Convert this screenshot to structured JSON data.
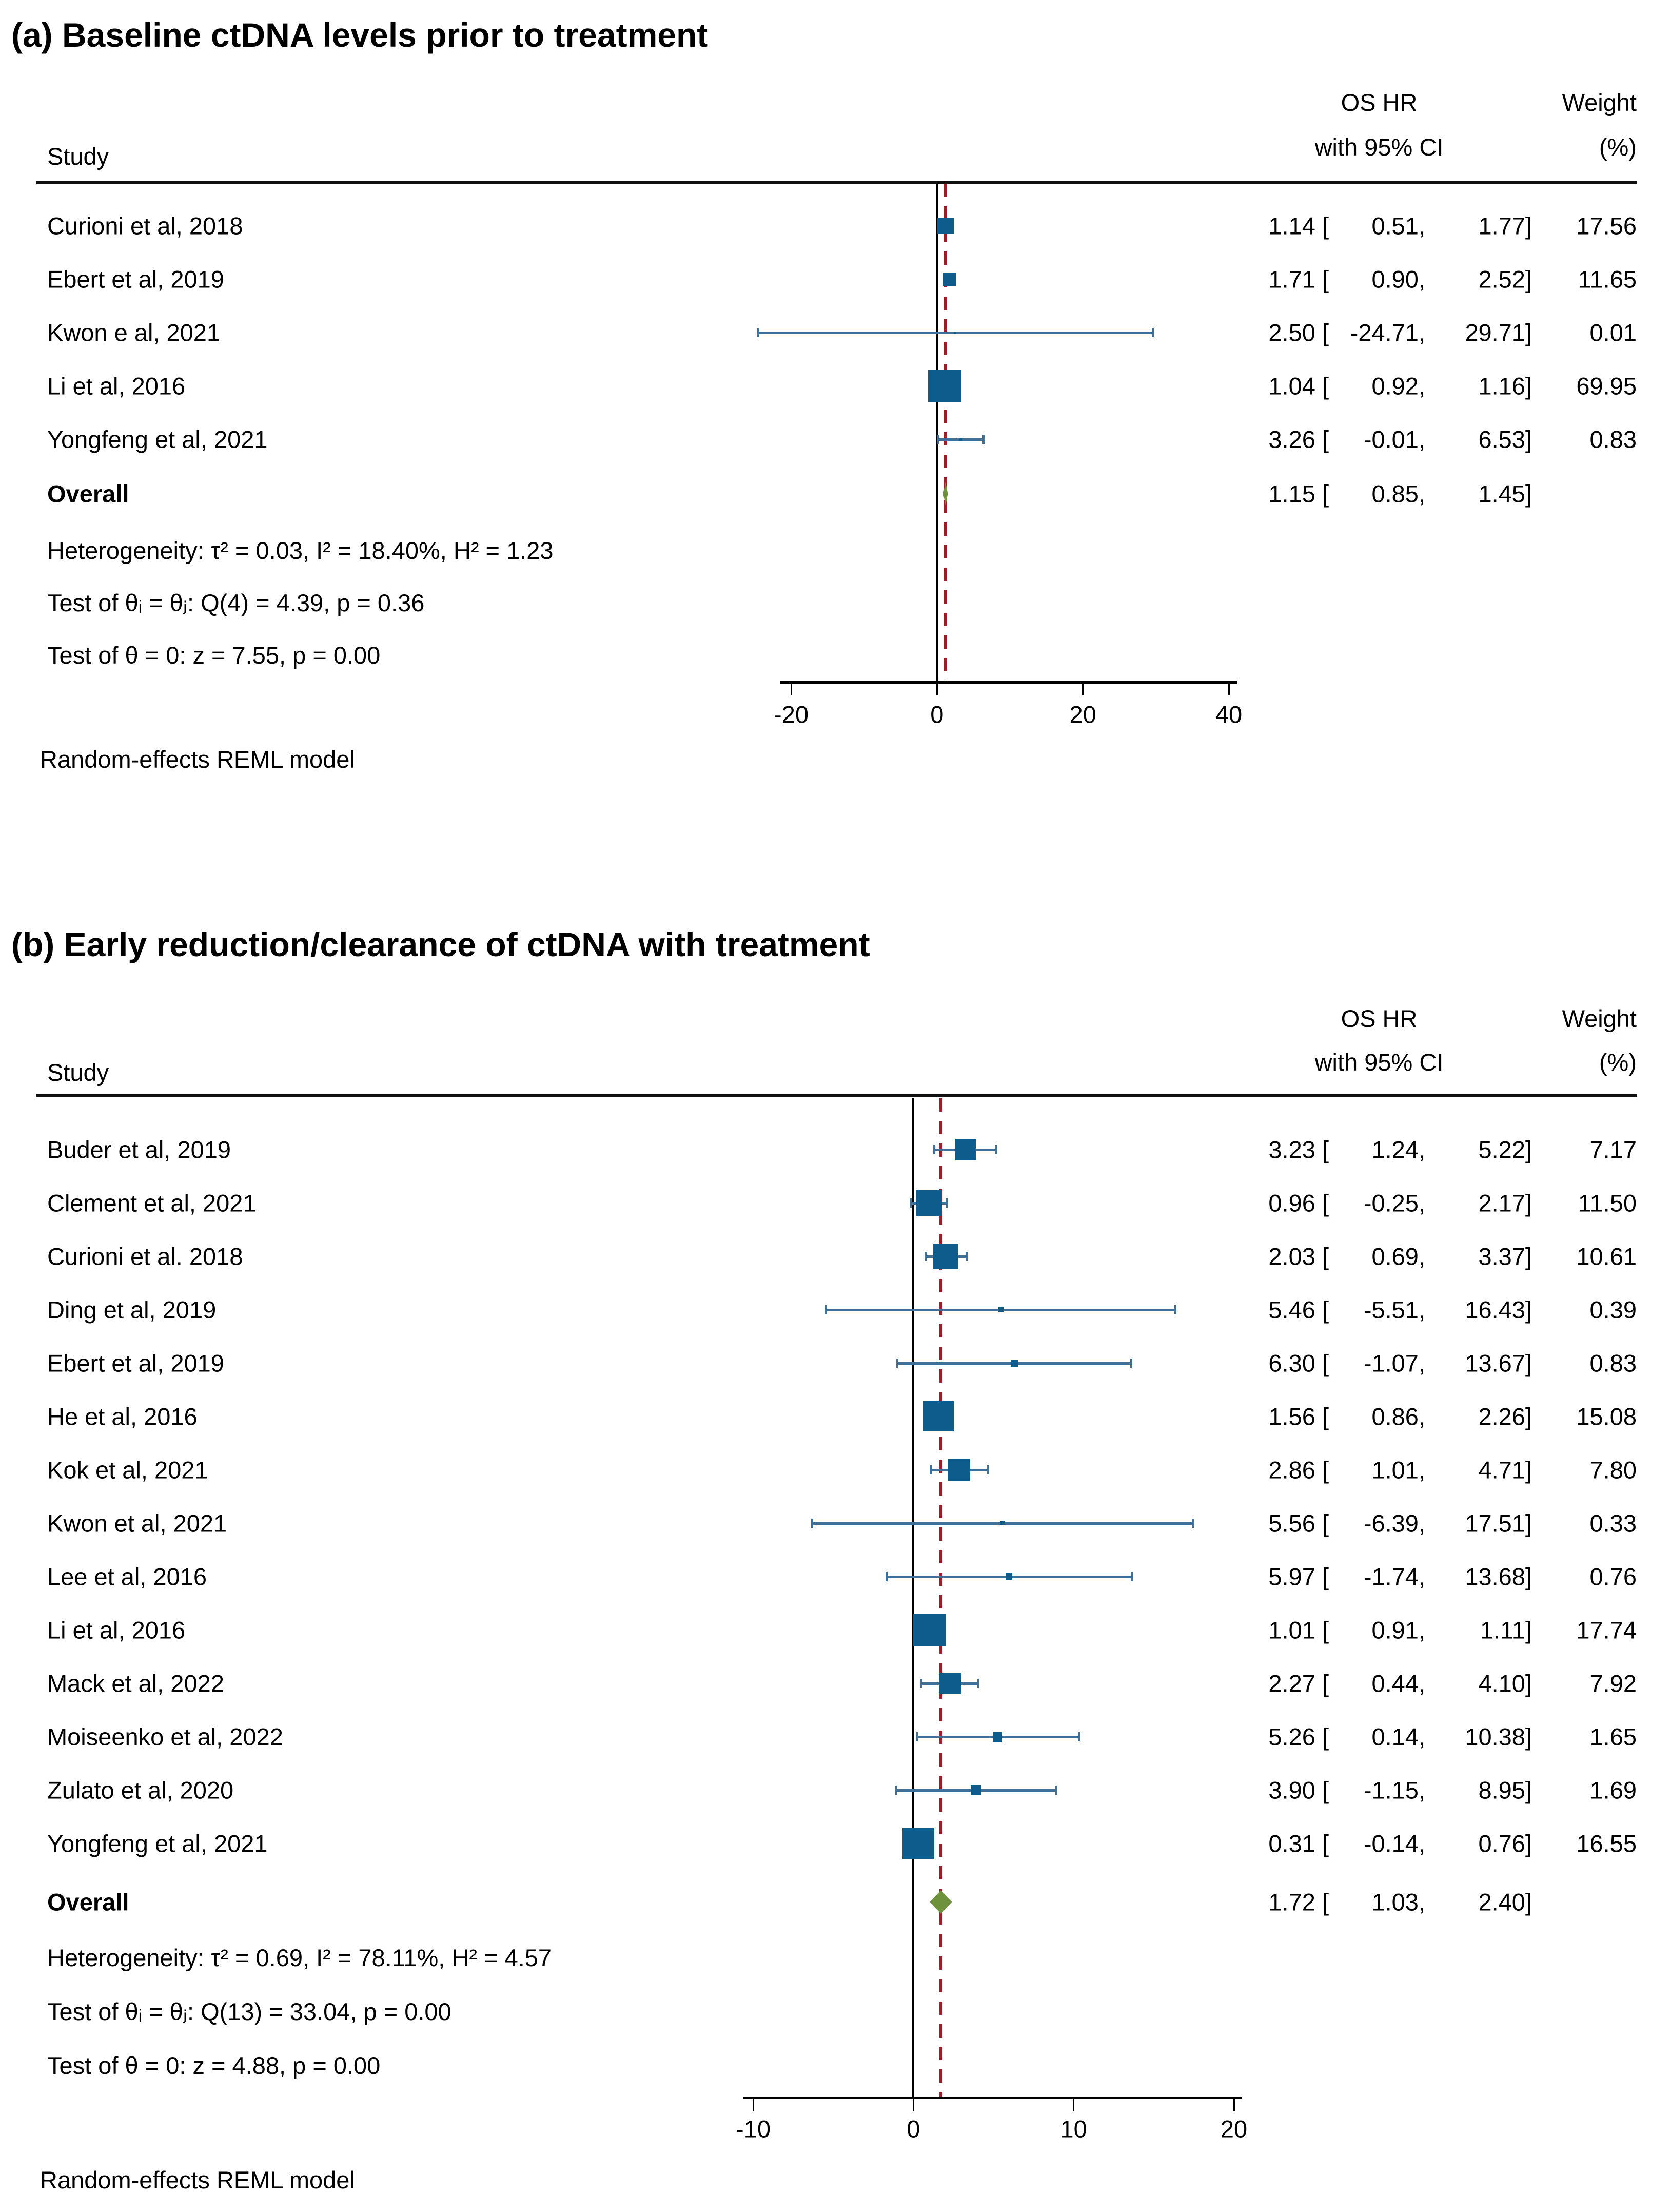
{
  "colors": {
    "marker": "#0d5c8c",
    "ci_line": "#3f7099",
    "diamond": "#6e913c",
    "ref_line_red": "#9b1e28",
    "zero_line": "#000000",
    "axis": "#000000"
  },
  "chart_data": [
    {
      "type": "scatter",
      "variant": "forest-plot",
      "panel_label": "(a)",
      "title": "(a) Baseline ctDNA levels prior to treatment",
      "columns": {
        "study": "Study",
        "effect_line1": "OS HR",
        "effect_line2": "with 95% CI",
        "weight_line1": "Weight",
        "weight_line2": "(%)"
      },
      "studies": [
        {
          "label": "Curioni et al, 2018",
          "est": 1.14,
          "lo": 0.51,
          "hi": 1.77,
          "weight": 17.56
        },
        {
          "label": "Ebert et al, 2019",
          "est": 1.71,
          "lo": 0.9,
          "hi": 2.52,
          "weight": 11.65
        },
        {
          "label": "Kwon e al, 2021",
          "est": 2.5,
          "lo": -24.71,
          "hi": 29.71,
          "weight": 0.01
        },
        {
          "label": "Li et al, 2016",
          "est": 1.04,
          "lo": 0.92,
          "hi": 1.16,
          "weight": 69.95
        },
        {
          "label": "Yongfeng et al, 2021",
          "est": 3.26,
          "lo": -0.01,
          "hi": 6.53,
          "weight": 0.83
        }
      ],
      "overall": {
        "label": "Overall",
        "est": 1.15,
        "lo": 0.85,
        "hi": 1.45
      },
      "heterogeneity": "Heterogeneity: τ² = 0.03, I² = 18.40%, H² = 1.23",
      "test_between": "Test of θᵢ = θⱼ: Q(4) = 4.39, p = 0.36",
      "test_zero": "Test of θ = 0: z = 7.55, p = 0.00",
      "axis": {
        "ticks": [
          -20,
          0,
          20,
          40
        ],
        "xlim": [
          -21.5,
          41.2
        ],
        "ref_value": 0,
        "overall_ref": 1.15,
        "grid": false
      },
      "footer": "Random-effects REML model"
    },
    {
      "type": "scatter",
      "variant": "forest-plot",
      "panel_label": "(b)",
      "title": "(b) Early reduction/clearance of ctDNA with treatment",
      "columns": {
        "study": "Study",
        "effect_line1": "OS HR",
        "effect_line2": "with 95% CI",
        "weight_line1": "Weight",
        "weight_line2": "(%)"
      },
      "studies": [
        {
          "label": "Buder et al, 2019",
          "est": 3.23,
          "lo": 1.24,
          "hi": 5.22,
          "weight": 7.17
        },
        {
          "label": "Clement et al, 2021",
          "est": 0.96,
          "lo": -0.25,
          "hi": 2.17,
          "weight": 11.5
        },
        {
          "label": "Curioni et al. 2018",
          "est": 2.03,
          "lo": 0.69,
          "hi": 3.37,
          "weight": 10.61
        },
        {
          "label": "Ding et al, 2019",
          "est": 5.46,
          "lo": -5.51,
          "hi": 16.43,
          "weight": 0.39
        },
        {
          "label": "Ebert et al, 2019",
          "est": 6.3,
          "lo": -1.07,
          "hi": 13.67,
          "weight": 0.83
        },
        {
          "label": "He et al, 2016",
          "est": 1.56,
          "lo": 0.86,
          "hi": 2.26,
          "weight": 15.08
        },
        {
          "label": "Kok et al, 2021",
          "est": 2.86,
          "lo": 1.01,
          "hi": 4.71,
          "weight": 7.8
        },
        {
          "label": "Kwon et al, 2021",
          "est": 5.56,
          "lo": -6.39,
          "hi": 17.51,
          "weight": 0.33
        },
        {
          "label": "Lee et al, 2016",
          "est": 5.97,
          "lo": -1.74,
          "hi": 13.68,
          "weight": 0.76
        },
        {
          "label": "Li et al, 2016",
          "est": 1.01,
          "lo": 0.91,
          "hi": 1.11,
          "weight": 17.74
        },
        {
          "label": "Mack et al, 2022",
          "est": 2.27,
          "lo": 0.44,
          "hi": 4.1,
          "weight": 7.92
        },
        {
          "label": "Moiseenko et al, 2022",
          "est": 5.26,
          "lo": 0.14,
          "hi": 10.38,
          "weight": 1.65
        },
        {
          "label": "Zulato et al, 2020",
          "est": 3.9,
          "lo": -1.15,
          "hi": 8.95,
          "weight": 1.69
        },
        {
          "label": "Yongfeng et al, 2021",
          "est": 0.31,
          "lo": -0.14,
          "hi": 0.76,
          "weight": 16.55
        }
      ],
      "overall": {
        "label": "Overall",
        "est": 1.72,
        "lo": 1.03,
        "hi": 2.4
      },
      "heterogeneity": "Heterogeneity: τ² = 0.69, I² = 78.11%, H² = 4.57",
      "test_between": "Test of θᵢ = θⱼ: Q(13) = 33.04, p = 0.00",
      "test_zero": "Test of θ = 0: z = 4.88, p = 0.00",
      "axis": {
        "ticks": [
          -10,
          0,
          10,
          20
        ],
        "xlim": [
          -10.6,
          20.5
        ],
        "ref_value": 0,
        "overall_ref": 1.72,
        "grid": false
      },
      "footer": "Random-effects REML model"
    }
  ]
}
